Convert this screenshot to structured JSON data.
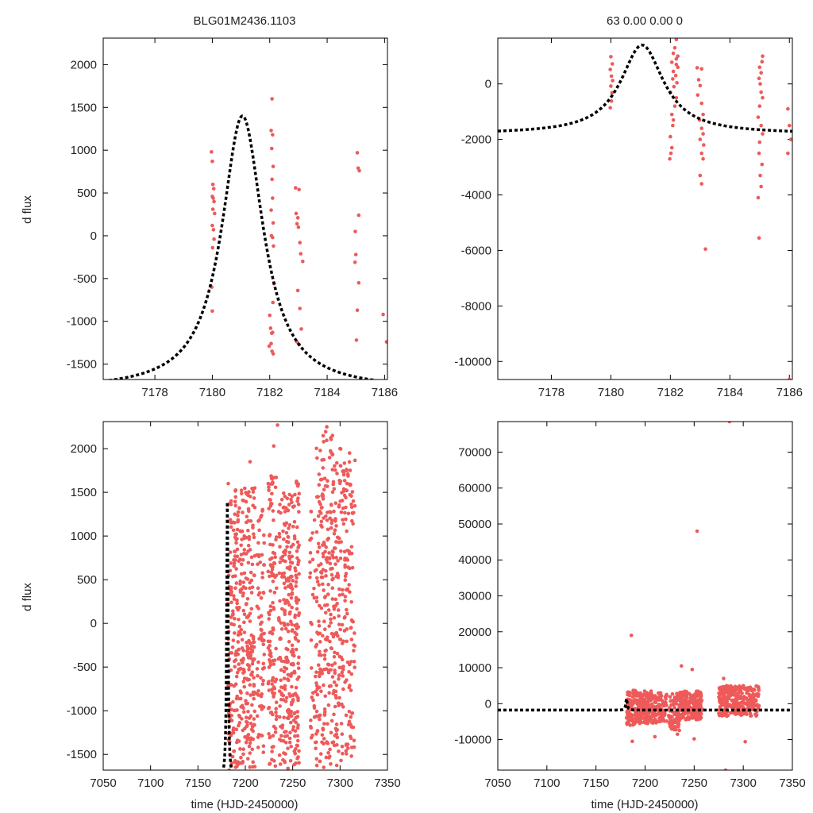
{
  "titles": {
    "left": "BLG01M2436.1103",
    "right": "63  0.00  0.00  0"
  },
  "labels": {
    "ylabel": "d flux",
    "xlabel": "time (HJD-2450000)"
  },
  "colors": {
    "points": "#ee5a5a",
    "model": "#000000"
  },
  "chart_data": [
    {
      "id": "top-left",
      "type": "scatter",
      "title": "BLG01M2436.1103",
      "xlabel": "",
      "ylabel": "d flux",
      "xlim": [
        7176.2,
        7186.1
      ],
      "ylim": [
        -1680,
        2310
      ],
      "xticks": [
        7178,
        7180,
        7182,
        7184,
        7186
      ],
      "yticks": [
        -1500,
        -1000,
        -500,
        0,
        500,
        1000,
        1500,
        2000
      ],
      "model": {
        "t0": 7181.05,
        "peak": 1400,
        "base": -1800,
        "tau": 1.3
      },
      "series": [
        {
          "name": "data",
          "points": [
            [
              7179.97,
              980
            ],
            [
              7180.0,
              870
            ],
            [
              7180.02,
              600
            ],
            [
              7180.05,
              550
            ],
            [
              7180.0,
              460
            ],
            [
              7180.03,
              440
            ],
            [
              7180.06,
              400
            ],
            [
              7180.02,
              310
            ],
            [
              7180.08,
              260
            ],
            [
              7180.0,
              120
            ],
            [
              7180.04,
              70
            ],
            [
              7180.06,
              -40
            ],
            [
              7180.01,
              -140
            ],
            [
              7179.98,
              -600
            ],
            [
              7180.0,
              -880
            ],
            [
              7182.05,
              1230
            ],
            [
              7182.1,
              1180
            ],
            [
              7182.07,
              1020
            ],
            [
              7182.12,
              810
            ],
            [
              7182.08,
              660
            ],
            [
              7182.1,
              440
            ],
            [
              7182.05,
              300
            ],
            [
              7182.12,
              150
            ],
            [
              7182.06,
              0
            ],
            [
              7182.1,
              -20
            ],
            [
              7182.13,
              -120
            ],
            [
              7182.15,
              -560
            ],
            [
              7182.11,
              -780
            ],
            [
              7182.0,
              -930
            ],
            [
              7182.03,
              -1080
            ],
            [
              7182.1,
              -1130
            ],
            [
              7182.05,
              -1260
            ],
            [
              7181.98,
              -1290
            ],
            [
              7182.08,
              -1350
            ],
            [
              7182.12,
              -1380
            ],
            [
              7182.07,
              -1140
            ],
            [
              7182.08,
              1600
            ],
            [
              7182.9,
              560
            ],
            [
              7183.02,
              540
            ],
            [
              7182.92,
              260
            ],
            [
              7182.98,
              210
            ],
            [
              7182.95,
              140
            ],
            [
              7183.0,
              100
            ],
            [
              7183.05,
              -80
            ],
            [
              7183.08,
              -210
            ],
            [
              7183.15,
              -300
            ],
            [
              7182.98,
              -640
            ],
            [
              7183.05,
              -850
            ],
            [
              7183.1,
              -1090
            ],
            [
              7182.95,
              -1240
            ],
            [
              7183.02,
              -1270
            ],
            [
              7185.05,
              970
            ],
            [
              7185.08,
              790
            ],
            [
              7185.12,
              760
            ],
            [
              7185.1,
              240
            ],
            [
              7184.98,
              50
            ],
            [
              7185.0,
              -220
            ],
            [
              7184.97,
              -310
            ],
            [
              7185.1,
              -550
            ],
            [
              7185.05,
              -870
            ],
            [
              7185.02,
              -1220
            ],
            [
              7185.95,
              -920
            ],
            [
              7186.07,
              -1240
            ]
          ]
        }
      ]
    },
    {
      "id": "top-right",
      "type": "scatter",
      "title": "63  0.00  0.00  0",
      "xlabel": "",
      "ylabel": "",
      "xlim": [
        7176.2,
        7186.1
      ],
      "ylim": [
        -10650,
        1650
      ],
      "xticks": [
        7178,
        7180,
        7182,
        7184,
        7186
      ],
      "yticks": [
        -10000,
        -8000,
        -6000,
        -4000,
        -2000,
        0
      ],
      "model": {
        "t0": 7181.05,
        "peak": 1400,
        "base": -1800,
        "tau": 1.3
      },
      "series": [
        {
          "name": "data",
          "points": [
            [
              7180.0,
              980
            ],
            [
              7180.05,
              720
            ],
            [
              7179.98,
              520
            ],
            [
              7180.02,
              280
            ],
            [
              7180.06,
              120
            ],
            [
              7180.0,
              -80
            ],
            [
              7180.04,
              -320
            ],
            [
              7180.02,
              -620
            ],
            [
              7179.98,
              -860
            ],
            [
              7182.2,
              1600
            ],
            [
              7182.15,
              1300
            ],
            [
              7182.1,
              1100
            ],
            [
              7182.2,
              900
            ],
            [
              7182.05,
              780
            ],
            [
              7182.25,
              600
            ],
            [
              7182.1,
              450
            ],
            [
              7182.18,
              300
            ],
            [
              7182.08,
              180
            ],
            [
              7182.22,
              40
            ],
            [
              7182.12,
              -100
            ],
            [
              7182.0,
              -300
            ],
            [
              7182.2,
              -500
            ],
            [
              7182.15,
              -800
            ],
            [
              7182.05,
              -1100
            ],
            [
              7182.1,
              -1300
            ],
            [
              7182.08,
              -1500
            ],
            [
              7182.0,
              -1900
            ],
            [
              7182.05,
              -2300
            ],
            [
              7182.02,
              -2500
            ],
            [
              7181.98,
              -2700
            ],
            [
              7182.2,
              700
            ],
            [
              7182.25,
              1000
            ],
            [
              7182.9,
              580
            ],
            [
              7183.05,
              540
            ],
            [
              7182.95,
              150
            ],
            [
              7183.0,
              -60
            ],
            [
              7182.92,
              -400
            ],
            [
              7183.05,
              -700
            ],
            [
              7183.1,
              -1100
            ],
            [
              7182.98,
              -1300
            ],
            [
              7183.05,
              -1600
            ],
            [
              7183.1,
              -1800
            ],
            [
              7183.0,
              -2000
            ],
            [
              7183.12,
              -2200
            ],
            [
              7183.05,
              -2500
            ],
            [
              7183.1,
              -2700
            ],
            [
              7183.0,
              -3300
            ],
            [
              7183.05,
              -3600
            ],
            [
              7183.18,
              -5950
            ],
            [
              7185.1,
              1000
            ],
            [
              7185.08,
              800
            ],
            [
              7185.0,
              600
            ],
            [
              7185.05,
              400
            ],
            [
              7184.98,
              200
            ],
            [
              7185.02,
              0
            ],
            [
              7185.05,
              -300
            ],
            [
              7185.1,
              -500
            ],
            [
              7185.0,
              -800
            ],
            [
              7184.95,
              -1200
            ],
            [
              7185.05,
              -1500
            ],
            [
              7185.1,
              -1800
            ],
            [
              7185.0,
              -2100
            ],
            [
              7184.98,
              -2500
            ],
            [
              7185.08,
              -2900
            ],
            [
              7185.02,
              -3300
            ],
            [
              7184.95,
              -4100
            ],
            [
              7185.05,
              -3700
            ],
            [
              7184.98,
              -5550
            ],
            [
              7185.95,
              -900
            ],
            [
              7186.0,
              -1500
            ],
            [
              7186.05,
              -2000
            ],
            [
              7185.95,
              -2500
            ],
            [
              7186.0,
              -10650
            ]
          ]
        }
      ]
    },
    {
      "id": "bottom-left",
      "type": "scatter",
      "title": "",
      "xlabel": "time (HJD-2450000)",
      "ylabel": "d flux",
      "xlim": [
        7050,
        7350
      ],
      "ylim": [
        -1680,
        2310
      ],
      "xticks": [
        7050,
        7100,
        7150,
        7200,
        7250,
        7300,
        7350
      ],
      "yticks": [
        -1500,
        -1000,
        -500,
        0,
        500,
        1000,
        1500,
        2000
      ],
      "model": {
        "t0": 7181.05,
        "peak": 1400,
        "base": -1800,
        "tau": 1.3
      },
      "series": [
        {
          "name": "data",
          "points": [
            [
              7182,
              1600
            ],
            [
              7185,
              1400
            ],
            [
              7205,
              1850
            ],
            [
              7210,
              1550
            ],
            [
              7230,
              2030
            ],
            [
              7234,
              2270
            ],
            [
              7254,
              1620
            ],
            [
              7255,
              1400
            ],
            [
              7286,
              2250
            ],
            [
              7292,
              2150
            ],
            [
              7300,
              2000
            ],
            [
              7310,
              1950
            ],
            [
              7281,
              1870
            ],
            [
              7307,
              1750
            ],
            [
              7293,
              1620
            ],
            [
              7314,
              1400
            ],
            [
              7183,
              -1680
            ],
            [
              7195,
              -1600
            ],
            [
              7210,
              -1640
            ],
            [
              7228,
              -1560
            ],
            [
              7245,
              -1660
            ],
            [
              7290,
              -1610
            ],
            [
              7301,
              -1570
            ],
            [
              7312,
              -1520
            ]
          ]
        },
        {
          "name": "cluster",
          "clusters": [
            {
              "x0": 7181,
              "x1": 7188,
              "n": 70,
              "ymin": -1650,
              "ymax": 1450
            },
            {
              "x0": 7188,
              "x1": 7198,
              "n": 130,
              "ymin": -1650,
              "ymax": 1550
            },
            {
              "x0": 7198,
              "x1": 7210,
              "n": 160,
              "ymin": -1650,
              "ymax": 1600
            },
            {
              "x0": 7212,
              "x1": 7220,
              "n": 70,
              "ymin": -1500,
              "ymax": 1400
            },
            {
              "x0": 7224,
              "x1": 7233,
              "n": 120,
              "ymin": -1650,
              "ymax": 1700
            },
            {
              "x0": 7235,
              "x1": 7247,
              "n": 150,
              "ymin": -1650,
              "ymax": 1500
            },
            {
              "x0": 7247,
              "x1": 7257,
              "n": 150,
              "ymin": -1650,
              "ymax": 1650
            },
            {
              "x0": 7268,
              "x1": 7275,
              "n": 40,
              "ymin": -1600,
              "ymax": 1300
            },
            {
              "x0": 7275,
              "x1": 7292,
              "n": 200,
              "ymin": -1650,
              "ymax": 2200
            },
            {
              "x0": 7292,
              "x1": 7303,
              "n": 120,
              "ymin": -1650,
              "ymax": 2000
            },
            {
              "x0": 7303,
              "x1": 7316,
              "n": 120,
              "ymin": -1500,
              "ymax": 1900
            }
          ]
        }
      ]
    },
    {
      "id": "bottom-right",
      "type": "scatter",
      "title": "",
      "xlabel": "time (HJD-2450000)",
      "ylabel": "",
      "xlim": [
        7050,
        7350
      ],
      "ylim": [
        -18500,
        78500
      ],
      "xticks": [
        7050,
        7100,
        7150,
        7200,
        7250,
        7300,
        7350
      ],
      "yticks": [
        -10000,
        0,
        10000,
        20000,
        30000,
        40000,
        50000,
        60000,
        70000
      ],
      "model": {
        "t0": 7181.05,
        "peak": 1400,
        "base": -1800,
        "tau": 1.3
      },
      "series": [
        {
          "name": "data",
          "points": [
            [
              7186,
              19000
            ],
            [
              7253,
              48000
            ],
            [
              7286,
              78500
            ],
            [
              7282,
              -18500
            ],
            [
              7187,
              -10500
            ],
            [
              7210,
              -9200
            ],
            [
              7233,
              -8500
            ],
            [
              7250,
              -9800
            ],
            [
              7302,
              -10600
            ],
            [
              7280,
              7000
            ],
            [
              7237,
              10500
            ],
            [
              7248,
              9500
            ]
          ]
        },
        {
          "name": "cluster",
          "clusters": [
            {
              "x0": 7181,
              "x1": 7190,
              "n": 80,
              "ymin": -6000,
              "ymax": 4000
            },
            {
              "x0": 7190,
              "x1": 7212,
              "n": 200,
              "ymin": -5500,
              "ymax": 3500
            },
            {
              "x0": 7213,
              "x1": 7222,
              "n": 60,
              "ymin": -5000,
              "ymax": 3000
            },
            {
              "x0": 7224,
              "x1": 7235,
              "n": 80,
              "ymin": -7500,
              "ymax": 3000
            },
            {
              "x0": 7235,
              "x1": 7258,
              "n": 200,
              "ymin": -4500,
              "ymax": 3500
            },
            {
              "x0": 7275,
              "x1": 7316,
              "n": 300,
              "ymin": -3500,
              "ymax": 5000
            }
          ]
        }
      ]
    }
  ]
}
